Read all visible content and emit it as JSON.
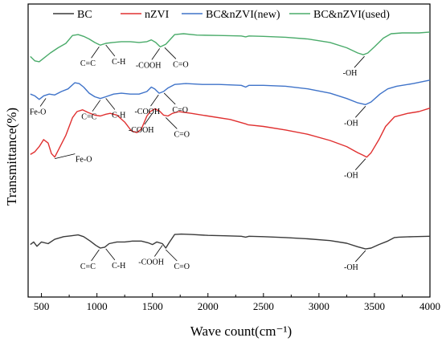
{
  "chart_data": {
    "type": "line",
    "title": "",
    "xlabel": "Wave count(cm⁻¹)",
    "ylabel": "Transmittance(%)",
    "xlim": [
      380,
      4000
    ],
    "x_ticks": [
      "500",
      "1000",
      "1500",
      "2000",
      "2500",
      "3000",
      "3500",
      "4000"
    ],
    "x_tick_values": [
      500,
      1000,
      1500,
      2000,
      2500,
      3000,
      3500,
      4000
    ],
    "y_ticks": [],
    "yaxis": "arbitrary units, stacked curves, no tick labels",
    "grid": false,
    "legend_placement": "top",
    "series": [
      {
        "name": "BC",
        "color": "#3a3a3a",
        "points": [
          [
            400,
            0.6
          ],
          [
            430,
            0.63
          ],
          [
            460,
            0.58
          ],
          [
            500,
            0.63
          ],
          [
            560,
            0.61
          ],
          [
            620,
            0.66
          ],
          [
            700,
            0.69
          ],
          [
            770,
            0.7
          ],
          [
            830,
            0.71
          ],
          [
            880,
            0.69
          ],
          [
            940,
            0.64
          ],
          [
            990,
            0.59
          ],
          [
            1030,
            0.56
          ],
          [
            1070,
            0.57
          ],
          [
            1110,
            0.61
          ],
          [
            1180,
            0.63
          ],
          [
            1250,
            0.63
          ],
          [
            1320,
            0.64
          ],
          [
            1400,
            0.64
          ],
          [
            1460,
            0.62
          ],
          [
            1500,
            0.6
          ],
          [
            1540,
            0.63
          ],
          [
            1590,
            0.61
          ],
          [
            1620,
            0.56
          ],
          [
            1650,
            0.62
          ],
          [
            1700,
            0.715
          ],
          [
            1760,
            0.72
          ],
          [
            1850,
            0.715
          ],
          [
            2000,
            0.705
          ],
          [
            2150,
            0.7
          ],
          [
            2300,
            0.695
          ],
          [
            2340,
            0.685
          ],
          [
            2370,
            0.695
          ],
          [
            2500,
            0.69
          ],
          [
            2700,
            0.68
          ],
          [
            2900,
            0.665
          ],
          [
            3100,
            0.645
          ],
          [
            3250,
            0.615
          ],
          [
            3350,
            0.575
          ],
          [
            3420,
            0.55
          ],
          [
            3470,
            0.56
          ],
          [
            3540,
            0.6
          ],
          [
            3620,
            0.64
          ],
          [
            3680,
            0.68
          ],
          [
            3720,
            0.685
          ],
          [
            3850,
            0.69
          ],
          [
            4000,
            0.695
          ]
        ]
      },
      {
        "name": "nZVI",
        "color": "#e03030",
        "points": [
          [
            400,
            1.63
          ],
          [
            440,
            1.66
          ],
          [
            480,
            1.72
          ],
          [
            520,
            1.8
          ],
          [
            560,
            1.76
          ],
          [
            590,
            1.64
          ],
          [
            620,
            1.6
          ],
          [
            660,
            1.7
          ],
          [
            720,
            1.85
          ],
          [
            780,
            2.05
          ],
          [
            820,
            2.12
          ],
          [
            870,
            2.14
          ],
          [
            920,
            2.11
          ],
          [
            980,
            2.08
          ],
          [
            1030,
            2.07
          ],
          [
            1080,
            2.09
          ],
          [
            1120,
            2.1
          ],
          [
            1180,
            2.08
          ],
          [
            1250,
            2.0
          ],
          [
            1310,
            1.9
          ],
          [
            1360,
            1.88
          ],
          [
            1400,
            1.92
          ],
          [
            1450,
            2.07
          ],
          [
            1480,
            2.12
          ],
          [
            1520,
            2.15
          ],
          [
            1560,
            2.13
          ],
          [
            1600,
            2.08
          ],
          [
            1640,
            2.07
          ],
          [
            1680,
            2.1
          ],
          [
            1740,
            2.12
          ],
          [
            1850,
            2.1
          ],
          [
            2000,
            2.07
          ],
          [
            2200,
            2.03
          ],
          [
            2340,
            1.98
          ],
          [
            2360,
            1.97
          ],
          [
            2500,
            1.95
          ],
          [
            2700,
            1.91
          ],
          [
            2900,
            1.86
          ],
          [
            3100,
            1.79
          ],
          [
            3250,
            1.72
          ],
          [
            3350,
            1.65
          ],
          [
            3400,
            1.62
          ],
          [
            3430,
            1.6
          ],
          [
            3470,
            1.65
          ],
          [
            3540,
            1.8
          ],
          [
            3600,
            1.95
          ],
          [
            3680,
            2.06
          ],
          [
            3800,
            2.1
          ],
          [
            3900,
            2.12
          ],
          [
            4000,
            2.16
          ]
        ]
      },
      {
        "name": "BC&nZVI(new)",
        "color": "#3f73c9",
        "points": [
          [
            400,
            2.32
          ],
          [
            440,
            2.3
          ],
          [
            480,
            2.26
          ],
          [
            520,
            2.3
          ],
          [
            570,
            2.32
          ],
          [
            620,
            2.31
          ],
          [
            680,
            2.35
          ],
          [
            740,
            2.38
          ],
          [
            800,
            2.45
          ],
          [
            840,
            2.44
          ],
          [
            880,
            2.4
          ],
          [
            930,
            2.33
          ],
          [
            980,
            2.29
          ],
          [
            1030,
            2.27
          ],
          [
            1080,
            2.29
          ],
          [
            1150,
            2.32
          ],
          [
            1220,
            2.33
          ],
          [
            1300,
            2.32
          ],
          [
            1380,
            2.32
          ],
          [
            1450,
            2.35
          ],
          [
            1490,
            2.4
          ],
          [
            1520,
            2.38
          ],
          [
            1560,
            2.33
          ],
          [
            1600,
            2.35
          ],
          [
            1640,
            2.39
          ],
          [
            1700,
            2.43
          ],
          [
            1800,
            2.44
          ],
          [
            1950,
            2.43
          ],
          [
            2100,
            2.43
          ],
          [
            2300,
            2.42
          ],
          [
            2340,
            2.4
          ],
          [
            2370,
            2.42
          ],
          [
            2500,
            2.42
          ],
          [
            2700,
            2.41
          ],
          [
            2900,
            2.38
          ],
          [
            3100,
            2.33
          ],
          [
            3250,
            2.27
          ],
          [
            3350,
            2.22
          ],
          [
            3420,
            2.2
          ],
          [
            3470,
            2.23
          ],
          [
            3550,
            2.32
          ],
          [
            3620,
            2.38
          ],
          [
            3700,
            2.41
          ],
          [
            3850,
            2.44
          ],
          [
            4000,
            2.48
          ]
        ]
      },
      {
        "name": "BC&nZVI(used)",
        "color": "#4aab6a",
        "points": [
          [
            400,
            2.75
          ],
          [
            440,
            2.7
          ],
          [
            480,
            2.69
          ],
          [
            520,
            2.73
          ],
          [
            580,
            2.79
          ],
          [
            650,
            2.85
          ],
          [
            720,
            2.9
          ],
          [
            780,
            2.99
          ],
          [
            830,
            3.0
          ],
          [
            880,
            2.98
          ],
          [
            930,
            2.95
          ],
          [
            980,
            2.91
          ],
          [
            1030,
            2.88
          ],
          [
            1080,
            2.9
          ],
          [
            1140,
            2.91
          ],
          [
            1220,
            2.92
          ],
          [
            1300,
            2.92
          ],
          [
            1380,
            2.91
          ],
          [
            1450,
            2.92
          ],
          [
            1490,
            2.94
          ],
          [
            1530,
            2.91
          ],
          [
            1570,
            2.86
          ],
          [
            1620,
            2.89
          ],
          [
            1700,
            3.0
          ],
          [
            1780,
            3.01
          ],
          [
            1900,
            2.995
          ],
          [
            2100,
            2.99
          ],
          [
            2300,
            2.985
          ],
          [
            2340,
            2.975
          ],
          [
            2370,
            2.985
          ],
          [
            2500,
            2.98
          ],
          [
            2700,
            2.97
          ],
          [
            2900,
            2.95
          ],
          [
            3100,
            2.91
          ],
          [
            3250,
            2.85
          ],
          [
            3350,
            2.79
          ],
          [
            3400,
            2.77
          ],
          [
            3440,
            2.79
          ],
          [
            3500,
            2.86
          ],
          [
            3580,
            2.96
          ],
          [
            3650,
            3.01
          ],
          [
            3750,
            3.02
          ],
          [
            3900,
            3.02
          ],
          [
            4000,
            3.03
          ]
        ]
      }
    ],
    "annotations": [
      {
        "text": "C=C",
        "x": 1020,
        "y": 2.88,
        "series": "BC&nZVI(used)"
      },
      {
        "text": "C-H",
        "x": 1080,
        "y": 2.9,
        "series": "BC&nZVI(used)"
      },
      {
        "text": "-COOH",
        "x": 1565,
        "y": 2.86,
        "series": "BC&nZVI(used)"
      },
      {
        "text": "C=O",
        "x": 1610,
        "y": 2.87,
        "series": "BC&nZVI(used)"
      },
      {
        "text": "-OH",
        "x": 3410,
        "y": 2.77,
        "series": "BC&nZVI(used)"
      },
      {
        "text": "Fe-O",
        "x": 540,
        "y": 2.29,
        "series": "BC&nZVI(new)"
      },
      {
        "text": "C=C",
        "x": 1030,
        "y": 2.27,
        "series": "BC&nZVI(new)"
      },
      {
        "text": "C-H",
        "x": 1080,
        "y": 2.29,
        "series": "BC&nZVI(new)"
      },
      {
        "text": "-COOH",
        "x": 1555,
        "y": 2.33,
        "series": "BC&nZVI(new)"
      },
      {
        "text": "C=O",
        "x": 1605,
        "y": 2.35,
        "series": "BC&nZVI(new)"
      },
      {
        "text": "-OH",
        "x": 3420,
        "y": 2.2,
        "series": "BC&nZVI(new)"
      },
      {
        "text": "-COOH",
        "x": 1500,
        "y": 2.12,
        "series": "nZVI"
      },
      {
        "text": "C=O",
        "x": 1620,
        "y": 2.07,
        "series": "nZVI"
      },
      {
        "text": "Fe-O",
        "x": 620,
        "y": 1.6,
        "series": "nZVI"
      },
      {
        "text": "-OH",
        "x": 3420,
        "y": 1.6,
        "series": "nZVI"
      },
      {
        "text": "C=C",
        "x": 1020,
        "y": 0.56,
        "series": "BC"
      },
      {
        "text": "C-H",
        "x": 1080,
        "y": 0.57,
        "series": "BC"
      },
      {
        "text": "-COOH",
        "x": 1590,
        "y": 0.61,
        "series": "BC"
      },
      {
        "text": "C=O",
        "x": 1620,
        "y": 0.56,
        "series": "BC"
      },
      {
        "text": "-OH",
        "x": 3420,
        "y": 0.55,
        "series": "BC"
      }
    ]
  }
}
